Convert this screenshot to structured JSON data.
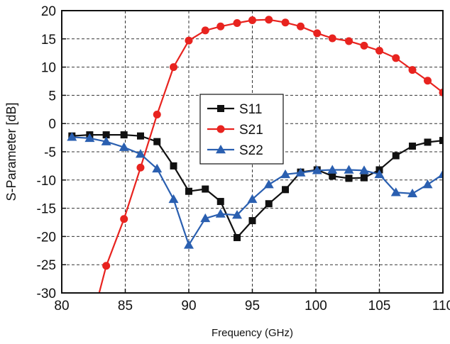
{
  "chart_data": {
    "type": "line",
    "title": "",
    "xlabel": "Frequency (GHz)",
    "ylabel": "S-Parameter [dB]",
    "xlim": [
      80,
      110
    ],
    "ylim": [
      -30,
      20
    ],
    "xticks": [
      80,
      85,
      90,
      95,
      100,
      105,
      110
    ],
    "yticks": [
      20,
      15,
      10,
      5,
      0,
      -5,
      -10,
      -15,
      -20,
      -25,
      -30
    ],
    "grid": true,
    "grid_style": "dashed",
    "legend_position": "center",
    "series": [
      {
        "name": "S11",
        "color": "#111111",
        "marker": "square",
        "x": [
          80.8,
          82.2,
          83.5,
          84.9,
          86.2,
          87.5,
          88.8,
          90.0,
          91.3,
          92.5,
          93.8,
          95.0,
          96.3,
          97.6,
          98.8,
          100.1,
          101.3,
          102.6,
          103.8,
          105.0,
          106.3,
          107.6,
          108.8,
          110.0
        ],
        "y": [
          -2.2,
          -2.0,
          -2.0,
          -2.0,
          -2.2,
          -3.2,
          -7.5,
          -12.0,
          -11.6,
          -13.8,
          -20.2,
          -17.2,
          -14.2,
          -11.7,
          -8.6,
          -8.2,
          -9.3,
          -9.7,
          -9.6,
          -8.2,
          -5.7,
          -4.0,
          -3.3,
          -3.0
        ]
      },
      {
        "name": "S21",
        "color": "#e8231f",
        "marker": "circle",
        "x": [
          83.5,
          84.9,
          86.2,
          87.5,
          88.8,
          90.0,
          91.3,
          92.5,
          93.8,
          95.0,
          96.3,
          97.6,
          98.8,
          100.1,
          101.3,
          102.6,
          103.8,
          105.0,
          106.3,
          107.6,
          108.8,
          110.0
        ],
        "y": [
          -25.2,
          -16.9,
          -7.8,
          1.6,
          10.0,
          14.7,
          16.5,
          17.2,
          17.8,
          18.3,
          18.4,
          17.9,
          17.2,
          16.0,
          15.1,
          14.6,
          13.8,
          12.9,
          11.6,
          9.5,
          7.6,
          5.5
        ]
      },
      {
        "name": "S22",
        "color": "#2a5fb0",
        "marker": "triangle",
        "x": [
          80.8,
          82.2,
          83.5,
          84.9,
          86.2,
          87.5,
          88.8,
          90.0,
          91.3,
          92.5,
          93.8,
          95.0,
          96.3,
          97.6,
          98.8,
          100.1,
          101.3,
          102.6,
          103.8,
          105.0,
          106.3,
          107.6,
          108.8,
          110.0
        ],
        "y": [
          -2.4,
          -2.6,
          -3.2,
          -4.2,
          -5.4,
          -8.0,
          -13.4,
          -21.5,
          -16.8,
          -16.0,
          -16.2,
          -13.4,
          -10.8,
          -9.0,
          -8.7,
          -8.3,
          -8.2,
          -8.2,
          -8.3,
          -9.0,
          -12.2,
          -12.4,
          -10.8,
          -9.0
        ]
      }
    ]
  }
}
